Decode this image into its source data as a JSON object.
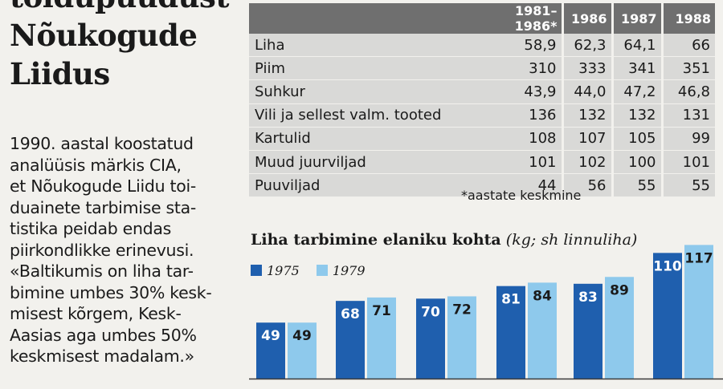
{
  "headline": [
    "toidupuudust",
    "Nõukogude",
    "Liidus"
  ],
  "body_lines": [
    "1990. aastal koostatud",
    "analüüsis märkis CIA,",
    "et Nõukogude Liidu toi-",
    "duainete tarbimise sta-",
    "tistika peidab endas",
    "piirkondlikke erinevusi.",
    "«Baltikumis on liha tar-",
    "bimine umbes 30% kesk-",
    "misest kõrgem, Kesk-",
    "Aasias aga umbes 50%",
    "keskmisest madalam.»"
  ],
  "table": {
    "headers": [
      "",
      "1981–1986*",
      "1986",
      "1987",
      "1988"
    ],
    "rows": [
      [
        "Liha",
        "58,9",
        "62,3",
        "64,1",
        "66"
      ],
      [
        "Piim",
        "310",
        "333",
        "341",
        "351"
      ],
      [
        "Suhkur",
        "43,9",
        "44,0",
        "47,2",
        "46,8"
      ],
      [
        "Vili ja sellest valm. tooted",
        "136",
        "132",
        "132",
        "131"
      ],
      [
        "Kartulid",
        "108",
        "107",
        "105",
        "99"
      ],
      [
        "Muud juurviljad",
        "101",
        "102",
        "100",
        "101"
      ],
      [
        "Puuviljad",
        "44",
        "56",
        "55",
        "55"
      ]
    ],
    "footnote": "*aastate keskmine"
  },
  "chart_title_bold": "Liha tarbimine elaniku kohta",
  "chart_title_italic": "(kg; sh linnuliha)",
  "colors": {
    "series1975": "#1f5fae",
    "series1979": "#8ec9ec",
    "table_header": "#6f6f6f",
    "table_row": "#d9d9d7"
  },
  "chart_data": {
    "type": "bar",
    "title": "Liha tarbimine elaniku kohta (kg; sh linnuliha)",
    "series": [
      {
        "name": "1975",
        "values": [
          49,
          68,
          70,
          81,
          83,
          110
        ]
      },
      {
        "name": "1979",
        "values": [
          49,
          71,
          72,
          84,
          89,
          117
        ]
      }
    ],
    "ylim": [
      0,
      125
    ],
    "legend": "top-left"
  }
}
